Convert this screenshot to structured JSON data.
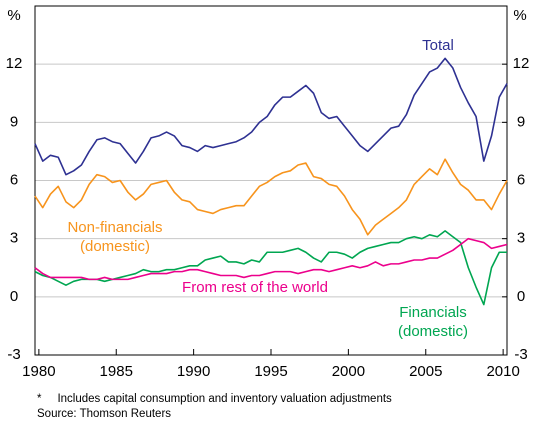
{
  "chart_data": {
    "type": "line",
    "y_unit": "%",
    "y2_unit": "%",
    "x": [
      1979.75,
      1980.25,
      1980.75,
      1981.25,
      1981.75,
      1982.25,
      1982.75,
      1983.25,
      1983.75,
      1984.25,
      1984.75,
      1985.25,
      1985.75,
      1986.25,
      1986.75,
      1987.25,
      1987.75,
      1988.25,
      1988.75,
      1989.25,
      1989.75,
      1990.25,
      1990.75,
      1991.25,
      1991.75,
      1992.25,
      1992.75,
      1993.25,
      1993.75,
      1994.25,
      1994.75,
      1995.25,
      1995.75,
      1996.25,
      1996.75,
      1997.25,
      1997.75,
      1998.25,
      1998.75,
      1999.25,
      1999.75,
      2000.25,
      2000.75,
      2001.25,
      2001.75,
      2002.25,
      2002.75,
      2003.25,
      2003.75,
      2004.25,
      2004.75,
      2005.25,
      2005.75,
      2006.25,
      2006.75,
      2007.25,
      2007.75,
      2008.25,
      2008.75,
      2009.25,
      2009.75,
      2010.25
    ],
    "series": [
      {
        "label": [
          "Total"
        ],
        "color": "#2e3192",
        "values": [
          7.9,
          7.0,
          7.3,
          7.2,
          6.3,
          6.5,
          6.8,
          7.5,
          8.1,
          8.2,
          8.0,
          7.9,
          7.4,
          6.9,
          7.5,
          8.2,
          8.3,
          8.5,
          8.3,
          7.8,
          7.7,
          7.5,
          7.8,
          7.7,
          7.8,
          7.9,
          8.0,
          8.2,
          8.5,
          9.0,
          9.3,
          9.9,
          10.3,
          10.3,
          10.6,
          10.9,
          10.5,
          9.5,
          9.2,
          9.3,
          8.8,
          8.3,
          7.8,
          7.5,
          7.9,
          8.3,
          8.7,
          8.8,
          9.4,
          10.4,
          11.0,
          11.6,
          11.8,
          12.3,
          11.8,
          10.8,
          10.0,
          9.3,
          7.0,
          8.3,
          10.3,
          11.0
        ]
      },
      {
        "label": [
          "Non-financials",
          "(domestic)"
        ],
        "color": "#f7941d",
        "values": [
          5.2,
          4.6,
          5.3,
          5.7,
          4.9,
          4.6,
          5.0,
          5.8,
          6.3,
          6.2,
          5.9,
          6.0,
          5.4,
          5.0,
          5.3,
          5.8,
          5.9,
          6.0,
          5.4,
          5.0,
          4.9,
          4.5,
          4.4,
          4.3,
          4.5,
          4.6,
          4.7,
          4.7,
          5.2,
          5.7,
          5.9,
          6.2,
          6.4,
          6.5,
          6.8,
          6.9,
          6.2,
          6.1,
          5.8,
          5.7,
          5.2,
          4.5,
          4.0,
          3.2,
          3.7,
          4.0,
          4.3,
          4.6,
          5.0,
          5.8,
          6.2,
          6.6,
          6.3,
          7.1,
          6.4,
          5.8,
          5.5,
          5.0,
          5.0,
          4.5,
          5.3,
          6.0
        ]
      },
      {
        "label": [
          "Financials",
          "(domestic)"
        ],
        "color": "#00a651",
        "values": [
          1.3,
          1.1,
          1.0,
          0.8,
          0.6,
          0.8,
          0.9,
          0.9,
          0.9,
          0.8,
          0.9,
          1.0,
          1.1,
          1.2,
          1.4,
          1.3,
          1.3,
          1.4,
          1.4,
          1.5,
          1.6,
          1.6,
          1.9,
          2.0,
          2.1,
          1.8,
          1.8,
          1.7,
          1.9,
          1.8,
          2.3,
          2.3,
          2.3,
          2.4,
          2.5,
          2.3,
          2.0,
          1.8,
          2.3,
          2.3,
          2.2,
          2.0,
          2.3,
          2.5,
          2.6,
          2.7,
          2.8,
          2.8,
          3.0,
          3.1,
          3.0,
          3.2,
          3.1,
          3.4,
          3.1,
          2.8,
          1.5,
          0.5,
          -0.4,
          1.5,
          2.3,
          2.3
        ]
      },
      {
        "label": [
          "From rest of the world"
        ],
        "color": "#ec008c",
        "values": [
          1.5,
          1.2,
          1.0,
          1.0,
          1.0,
          1.0,
          1.0,
          0.9,
          0.9,
          1.0,
          0.9,
          0.9,
          0.9,
          1.0,
          1.1,
          1.2,
          1.2,
          1.2,
          1.3,
          1.3,
          1.4,
          1.4,
          1.3,
          1.2,
          1.1,
          1.1,
          1.1,
          1.0,
          1.1,
          1.1,
          1.2,
          1.3,
          1.3,
          1.3,
          1.2,
          1.3,
          1.4,
          1.4,
          1.3,
          1.4,
          1.5,
          1.6,
          1.5,
          1.6,
          1.8,
          1.6,
          1.7,
          1.7,
          1.8,
          1.9,
          1.9,
          2.0,
          2.0,
          2.2,
          2.4,
          2.7,
          3.0,
          2.9,
          2.8,
          2.5,
          2.6,
          2.7
        ]
      }
    ],
    "xlim": [
      1979.75,
      2010.25
    ],
    "xticks": [
      1980,
      1985,
      1990,
      1995,
      2000,
      2005,
      2010
    ],
    "ylim": [
      -3,
      15
    ],
    "yticks": [
      -3,
      0,
      3,
      6,
      9,
      12
    ],
    "y2lim": [
      -3,
      15
    ],
    "y2ticks": [
      -3,
      0,
      3,
      6,
      9,
      12
    ],
    "grid": true,
    "footnotes": [
      "*     Includes capital consumption and inventory valuation adjustments",
      "Source: Thomson Reuters"
    ]
  }
}
